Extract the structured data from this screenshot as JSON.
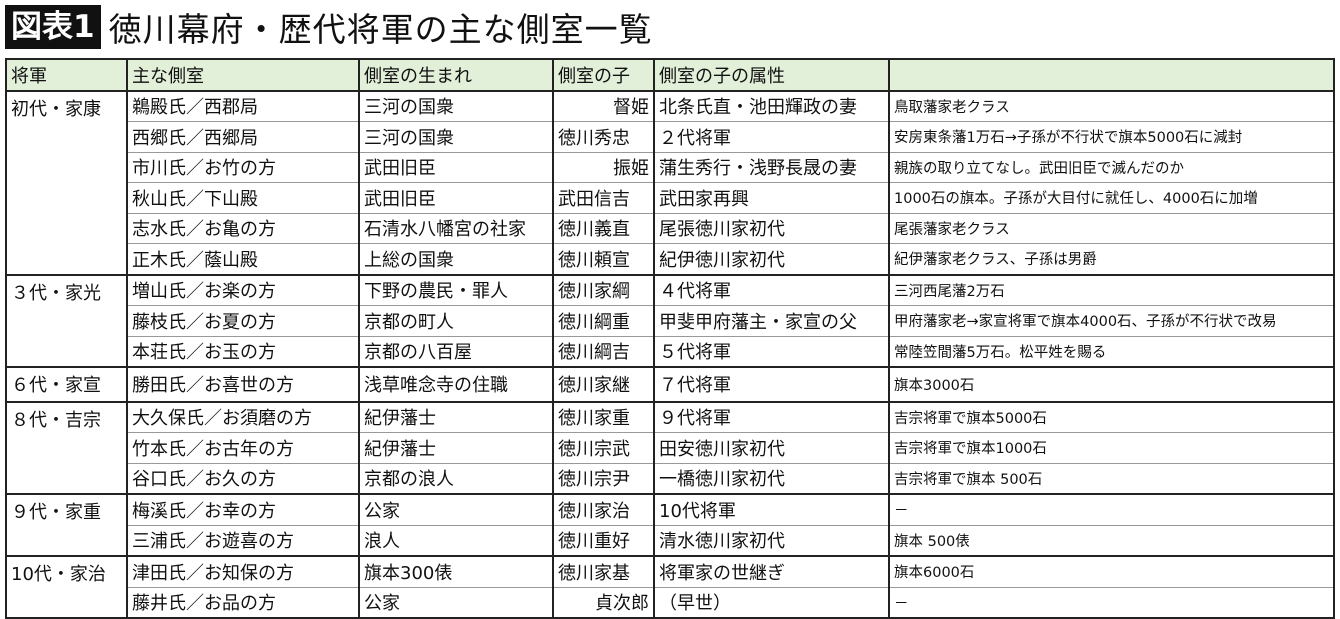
{
  "title": {
    "badge": "図表1",
    "text": "徳川幕府・歴代将軍の主な側室一覧"
  },
  "headers": [
    "将軍",
    "主な側室",
    "側室の生まれ",
    "側室の子",
    "側室の子の属性",
    ""
  ],
  "groups": [
    {
      "shogun": "初代・家康",
      "rows": [
        [
          "鵜殿氏／西郡局",
          "三河の国衆",
          "督姫",
          "北条氏直・池田輝政の妻",
          "鳥取藩家老クラス"
        ],
        [
          "西郷氏／西郷局",
          "三河の国衆",
          "徳川秀忠",
          "２代将軍",
          "安房東条藩1万石→子孫が不行状で旗本5000石に減封"
        ],
        [
          "市川氏／お竹の方",
          "武田旧臣",
          "振姫",
          "蒲生秀行・浅野長晟の妻",
          "親族の取り立てなし。武田旧臣で滅んだのか"
        ],
        [
          "秋山氏／下山殿",
          "武田旧臣",
          "武田信吉",
          "武田家再興",
          "1000石の旗本。子孫が大目付に就任し、4000石に加増"
        ],
        [
          "志水氏／お亀の方",
          "石清水八幡宮の社家",
          "徳川義直",
          "尾張徳川家初代",
          "尾張藩家老クラス"
        ],
        [
          "正木氏／蔭山殿",
          "上総の国衆",
          "徳川頼宣",
          "紀伊徳川家初代",
          "紀伊藩家老クラス、子孫は男爵"
        ]
      ]
    },
    {
      "shogun": "３代・家光",
      "rows": [
        [
          "増山氏／お楽の方",
          "下野の農民・罪人",
          "徳川家綱",
          "４代将軍",
          "三河西尾藩2万石"
        ],
        [
          "藤枝氏／お夏の方",
          "京都の町人",
          "徳川綱重",
          "甲斐甲府藩主・家宣の父",
          "甲府藩家老→家宣将軍で旗本4000石、子孫が不行状で改易"
        ],
        [
          "本荘氏／お玉の方",
          "京都の八百屋",
          "徳川綱吉",
          "５代将軍",
          "常陸笠間藩5万石。松平姓を賜る"
        ]
      ]
    },
    {
      "shogun": "６代・家宣",
      "rows": [
        [
          "勝田氏／お喜世の方",
          "浅草唯念寺の住職",
          "徳川家継",
          "７代将軍",
          "旗本3000石"
        ]
      ]
    },
    {
      "shogun": "８代・吉宗",
      "rows": [
        [
          "大久保氏／お須磨の方",
          "紀伊藩士",
          "徳川家重",
          "９代将軍",
          "吉宗将軍で旗本5000石"
        ],
        [
          "竹本氏／お古年の方",
          "紀伊藩士",
          "徳川宗武",
          "田安徳川家初代",
          "吉宗将軍で旗本1000石"
        ],
        [
          "谷口氏／お久の方",
          "京都の浪人",
          "徳川宗尹",
          "一橋徳川家初代",
          "吉宗将軍で旗本 500石"
        ]
      ]
    },
    {
      "shogun": "９代・家重",
      "rows": [
        [
          "梅溪氏／お幸の方",
          "公家",
          "徳川家治",
          "10代将軍",
          "－"
        ],
        [
          "三浦氏／お遊喜の方",
          "浪人",
          "徳川重好",
          "清水徳川家初代",
          "旗本 500俵"
        ]
      ]
    },
    {
      "shogun": "10代・家治",
      "rows": [
        [
          "津田氏／お知保の方",
          "旗本300俵",
          "徳川家基",
          "将軍家の世継ぎ",
          "旗本6000石"
        ],
        [
          "藤井氏／お品の方",
          "公家",
          "貞次郎",
          "（早世）",
          "－"
        ]
      ]
    }
  ]
}
